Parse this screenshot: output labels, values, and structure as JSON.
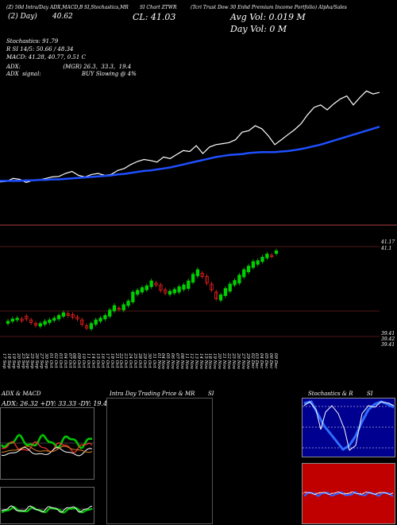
{
  "header": {
    "top_line_left": "(Z) 50d Intra/Day ADX,MACD,B",
    "top_line_mid1": "SI,Stochastics,MR",
    "top_line_mid2": "SI Chart ZTWR",
    "top_line_right": "(Tcri Trust Dow 30 Enhd Premium Income Portfolio) Alpha/Sales",
    "ma_days_text": "(2) Day)",
    "ma_value": "40.62",
    "close_text": "CL: 41.03",
    "avg_vol": "Avg Vol: 0.019 M",
    "day_vol": "Day Vol: 0   M"
  },
  "indicators": {
    "stochastics": "Stochastics: 91.79",
    "rsi": "R    SI 14/5: 50.66  / 48.34",
    "macd": "MACD: 41.28,  40.77,  0.51 C",
    "adx": "ADX:                        (MGR) 26.3,  33.3,  19.4",
    "adx_signal": "ADX  signal:                       BUY Slowing @ 4%"
  },
  "price_labels": {
    "top": "41.17",
    "mid": "41.1",
    "b1": "39.41",
    "b2": "39.42",
    "b3": "39.41"
  },
  "dates": [
    "17 Sep",
    "18 Sep",
    "19 Sep",
    "20 Sep",
    "23 Sep",
    "24 Sep",
    "25 Sep",
    "26 Sep",
    "27 Sep",
    "30 Sep",
    "01 Oct",
    "02 Oct",
    "03 Oct",
    "04 Oct",
    "07 Oct",
    "08 Oct",
    "09 Oct",
    "10 Oct",
    "11 Oct",
    "14 Oct",
    "15 Oct",
    "16 Oct",
    "17 Oct",
    "18 Oct",
    "21 Oct",
    "22 Oct",
    "23 Oct",
    "24 Oct",
    "25 Oct",
    "28 Oct",
    "29 Oct",
    "30 Oct",
    "31 Oct",
    "01 Nov",
    "04 Nov",
    "05 Nov",
    "06 Nov",
    "07 Nov",
    "08 Nov",
    "11 Nov",
    "12 Nov",
    "13 Nov",
    "14 Nov",
    "15 Nov",
    "18 Nov",
    "19 Nov",
    "20 Nov",
    "21 Nov",
    "22 Nov",
    "25 Nov",
    "26 Nov",
    "27 Nov",
    "29 Nov",
    "02 Dec",
    "03 Dec",
    "04 Dec",
    "05 Dec",
    "06 Dec",
    "09 Dec"
  ],
  "panels": {
    "adx_macd_title": "ADX  & MACD",
    "adx_values": "ADX: 26.32  +DY: 33.33  -DY: 19.44",
    "intraday_title": "Intra  Day Trading Price  & MR",
    "intraday_title_si": "SI",
    "stoch_title": "Stochastics & R",
    "stoch_title_si": "SI"
  },
  "colors": {
    "background": "#000000",
    "price_line": "#ffffff",
    "ma_line": "#1f4fff",
    "up_candle": "#00d000",
    "down_candle": "#ff2222",
    "divider": "#b04040",
    "stoch_bg": "#000090",
    "rsi_bg": "#c00000"
  },
  "chart_data": [
    {
      "type": "line",
      "title": "Price vs moving average",
      "series": [
        {
          "name": "Price",
          "values": [
            39.45,
            39.46,
            39.52,
            39.5,
            39.44,
            39.48,
            39.49,
            39.52,
            39.55,
            39.56,
            39.62,
            39.66,
            39.58,
            39.55,
            39.6,
            39.62,
            39.58,
            39.6,
            39.68,
            39.72,
            39.8,
            39.86,
            39.9,
            39.88,
            39.85,
            39.95,
            39.92,
            40.0,
            40.08,
            40.06,
            40.18,
            40.02,
            40.15,
            40.2,
            40.22,
            40.24,
            40.3,
            40.45,
            40.48,
            40.58,
            40.52,
            40.38,
            40.2,
            40.3,
            40.4,
            40.5,
            40.62,
            40.8,
            40.95,
            41.0,
            40.9,
            41.02,
            41.12,
            41.18,
            41.0,
            41.15,
            41.28,
            41.22,
            41.25
          ]
        },
        {
          "name": "MA",
          "values": [
            39.47,
            39.47,
            39.47,
            39.47,
            39.48,
            39.48,
            39.49,
            39.49,
            39.5,
            39.5,
            39.51,
            39.52,
            39.53,
            39.54,
            39.55,
            39.56,
            39.57,
            39.58,
            39.6,
            39.61,
            39.63,
            39.65,
            39.67,
            39.68,
            39.7,
            39.72,
            39.74,
            39.77,
            39.8,
            39.83,
            39.86,
            39.89,
            39.92,
            39.95,
            39.97,
            39.99,
            40.0,
            40.01,
            40.03,
            40.04,
            40.05,
            40.05,
            40.05,
            40.06,
            40.07,
            40.09,
            40.11,
            40.14,
            40.17,
            40.2,
            40.24,
            40.28,
            40.32,
            40.36,
            40.4,
            40.44,
            40.48,
            40.52,
            40.56
          ]
        }
      ]
    },
    {
      "type": "candlestick",
      "title": "Daily candles",
      "x": [
        "17 Sep",
        "18 Sep",
        "19 Sep",
        "20 Sep",
        "23 Sep",
        "24 Sep",
        "25 Sep",
        "26 Sep",
        "27 Sep",
        "30 Sep",
        "01 Oct",
        "02 Oct",
        "03 Oct",
        "04 Oct",
        "07 Oct",
        "08 Oct",
        "09 Oct",
        "10 Oct",
        "11 Oct",
        "14 Oct",
        "15 Oct",
        "16 Oct",
        "17 Oct",
        "18 Oct",
        "21 Oct",
        "22 Oct",
        "23 Oct",
        "24 Oct",
        "25 Oct",
        "28 Oct",
        "29 Oct",
        "30 Oct",
        "31 Oct",
        "01 Nov",
        "04 Nov",
        "05 Nov",
        "06 Nov",
        "07 Nov",
        "08 Nov",
        "11 Nov",
        "12 Nov",
        "13 Nov",
        "14 Nov",
        "15 Nov",
        "18 Nov",
        "19 Nov",
        "20 Nov",
        "21 Nov",
        "22 Nov",
        "25 Nov",
        "26 Nov",
        "27 Nov",
        "29 Nov",
        "02 Dec",
        "03 Dec",
        "04 Dec",
        "05 Dec",
        "06 Dec",
        "09 Dec"
      ],
      "open": [
        39.5,
        39.55,
        39.58,
        39.6,
        39.66,
        39.58,
        39.5,
        39.44,
        39.48,
        39.52,
        39.57,
        39.6,
        39.66,
        39.72,
        39.7,
        39.64,
        39.58,
        39.45,
        39.38,
        39.48,
        39.55,
        39.6,
        39.66,
        39.78,
        39.84,
        39.8,
        39.9,
        39.98,
        40.15,
        40.2,
        40.25,
        40.32,
        40.4,
        40.36,
        40.25,
        40.15,
        40.18,
        40.2,
        40.26,
        40.28,
        40.42,
        40.56,
        40.62,
        40.55,
        40.38,
        40.2,
        40.02,
        40.12,
        40.22,
        40.36,
        40.4,
        40.54,
        40.65,
        40.75,
        40.82,
        40.88,
        40.96,
        41.02,
        41.06
      ],
      "close": [
        39.55,
        39.6,
        39.62,
        39.56,
        39.6,
        39.52,
        39.46,
        39.5,
        39.55,
        39.58,
        39.62,
        39.68,
        39.74,
        39.68,
        39.64,
        39.6,
        39.48,
        39.4,
        39.5,
        39.58,
        39.62,
        39.68,
        39.8,
        39.9,
        39.82,
        39.92,
        40.0,
        40.2,
        40.24,
        40.3,
        40.34,
        40.45,
        40.36,
        40.24,
        40.18,
        40.22,
        40.26,
        40.32,
        40.36,
        40.45,
        40.6,
        40.7,
        40.55,
        40.4,
        40.25,
        40.05,
        40.14,
        40.28,
        40.38,
        40.46,
        40.58,
        40.7,
        40.78,
        40.88,
        40.9,
        40.98,
        41.05,
        41.0,
        41.12
      ],
      "ylim": [
        38.9,
        41.4
      ]
    }
  ]
}
